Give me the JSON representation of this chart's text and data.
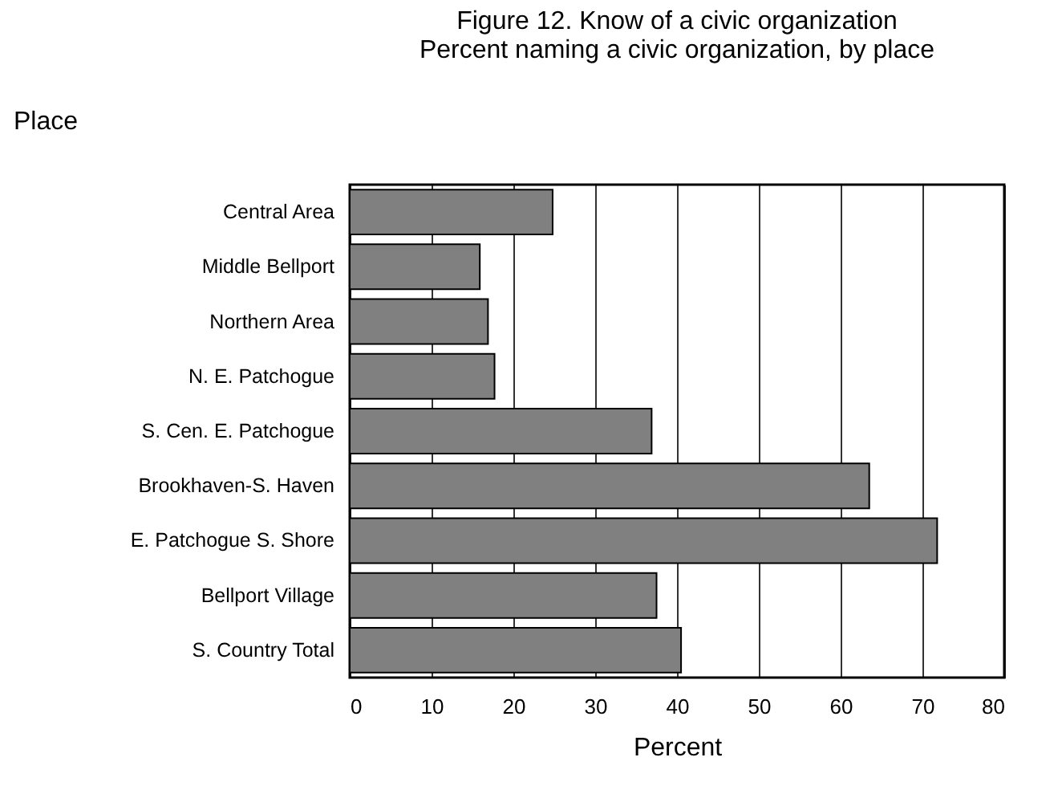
{
  "chart_data": {
    "type": "bar",
    "orientation": "horizontal",
    "title": "Figure 12.  Know of a civic organization",
    "subtitle": "Percent naming a civic organization, by place",
    "ylabel": "Place",
    "xlabel": "Percent",
    "categories": [
      "Central Area",
      "Middle Bellport",
      "Northern Area",
      "N. E. Patchogue",
      "S. Cen. E. Patchogue",
      "Brookhaven-S. Haven",
      "E. Patchogue S. Shore",
      "Bellport Village",
      "S. Country Total"
    ],
    "values": [
      24.8,
      15.9,
      16.9,
      17.7,
      36.9,
      63.5,
      71.8,
      37.5,
      40.5
    ],
    "color": "#808080",
    "xlim": [
      0,
      80
    ],
    "xticks": [
      0,
      10,
      20,
      30,
      40,
      50,
      60,
      70,
      80
    ],
    "grid": "x"
  }
}
